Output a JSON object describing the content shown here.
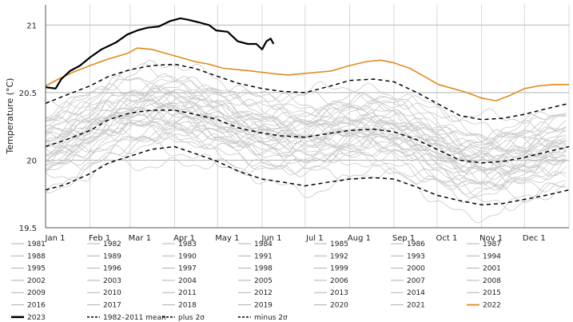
{
  "chart_data": {
    "type": "line",
    "title": "",
    "xlabel": "",
    "ylabel": "Temperature (°C)",
    "ylim": [
      19.5,
      21.15
    ],
    "y_ticks": [
      19.5,
      20,
      20.5,
      21
    ],
    "x_unit": "day of year",
    "xlim": [
      1,
      366
    ],
    "x_ticks": [
      {
        "label": "Jan 1",
        "day": 1
      },
      {
        "label": "Feb 1",
        "day": 32
      },
      {
        "label": "Mar 1",
        "day": 60
      },
      {
        "label": "Apr 1",
        "day": 91
      },
      {
        "label": "May 1",
        "day": 121
      },
      {
        "label": "Jun 1",
        "day": 152
      },
      {
        "label": "Jul 1",
        "day": 182
      },
      {
        "label": "Aug 1",
        "day": 213
      },
      {
        "label": "Sep 1",
        "day": 244
      },
      {
        "label": "Oct 1",
        "day": 274
      },
      {
        "label": "Nov 1",
        "day": 305
      },
      {
        "label": "Dec 1",
        "day": 335
      }
    ],
    "grid": true,
    "legend_position": "bottom",
    "background_years": [
      "1981",
      "1982",
      "1983",
      "1984",
      "1985",
      "1986",
      "1987",
      "1988",
      "1989",
      "1990",
      "1991",
      "1992",
      "1993",
      "1994",
      "1995",
      "1996",
      "1997",
      "1998",
      "1999",
      "2000",
      "2001",
      "2002",
      "2003",
      "2004",
      "2005",
      "2006",
      "2007",
      "2008",
      "2009",
      "2010",
      "2011",
      "2012",
      "2013",
      "2014",
      "2015",
      "2016",
      "2017",
      "2018",
      "2019",
      "2020",
      "2021"
    ],
    "background_color": "#c8c8c8",
    "series": [
      {
        "name": "2023",
        "color": "#000000",
        "style": "solid",
        "width": 2.2,
        "x": [
          1,
          8,
          12,
          18,
          25,
          32,
          40,
          50,
          58,
          65,
          72,
          80,
          88,
          95,
          100,
          108,
          115,
          120,
          128,
          135,
          142,
          148,
          152,
          155,
          158,
          160
        ],
        "y": [
          20.54,
          20.53,
          20.6,
          20.66,
          20.7,
          20.76,
          20.82,
          20.87,
          20.93,
          20.96,
          20.98,
          20.99,
          21.03,
          21.05,
          21.04,
          21.02,
          21.0,
          20.96,
          20.95,
          20.88,
          20.86,
          20.86,
          20.82,
          20.88,
          20.9,
          20.86
        ]
      },
      {
        "name": "2022",
        "color": "#e08a1e",
        "style": "solid",
        "width": 1.6,
        "x": [
          1,
          10,
          20,
          32,
          45,
          58,
          65,
          75,
          85,
          95,
          105,
          115,
          125,
          135,
          145,
          152,
          160,
          170,
          180,
          190,
          200,
          213,
          225,
          235,
          244,
          255,
          265,
          275,
          285,
          295,
          305,
          315,
          325,
          335,
          345,
          355,
          366
        ],
        "y": [
          20.55,
          20.6,
          20.65,
          20.7,
          20.75,
          20.79,
          20.83,
          20.82,
          20.79,
          20.76,
          20.73,
          20.71,
          20.68,
          20.67,
          20.66,
          20.65,
          20.64,
          20.63,
          20.64,
          20.65,
          20.66,
          20.7,
          20.73,
          20.74,
          20.72,
          20.68,
          20.62,
          20.56,
          20.53,
          20.5,
          20.46,
          20.44,
          20.48,
          20.53,
          20.55,
          20.56,
          20.56
        ]
      },
      {
        "name": "1982–2011 mean",
        "color": "#000000",
        "style": "dash",
        "width": 1.5,
        "x": [
          1,
          15,
          32,
          45,
          60,
          75,
          91,
          105,
          121,
          135,
          152,
          165,
          182,
          200,
          213,
          230,
          244,
          260,
          274,
          290,
          305,
          320,
          335,
          350,
          366
        ],
        "y": [
          20.1,
          20.15,
          20.22,
          20.3,
          20.35,
          20.37,
          20.37,
          20.34,
          20.3,
          20.24,
          20.2,
          20.18,
          20.17,
          20.2,
          20.22,
          20.23,
          20.21,
          20.15,
          20.08,
          20.0,
          19.98,
          19.99,
          20.02,
          20.06,
          20.1
        ]
      },
      {
        "name": "plus 2σ",
        "color": "#000000",
        "style": "dash",
        "width": 1.5,
        "x": [
          1,
          15,
          32,
          45,
          60,
          75,
          91,
          105,
          121,
          135,
          152,
          165,
          182,
          200,
          213,
          230,
          244,
          260,
          274,
          290,
          305,
          320,
          335,
          350,
          366
        ],
        "y": [
          20.42,
          20.48,
          20.55,
          20.62,
          20.67,
          20.7,
          20.71,
          20.68,
          20.62,
          20.57,
          20.53,
          20.51,
          20.5,
          20.55,
          20.59,
          20.6,
          20.58,
          20.5,
          20.42,
          20.33,
          20.3,
          20.31,
          20.34,
          20.38,
          20.42
        ]
      },
      {
        "name": "minus 2σ",
        "color": "#000000",
        "style": "dash",
        "width": 1.5,
        "x": [
          1,
          15,
          32,
          45,
          60,
          75,
          91,
          105,
          121,
          135,
          152,
          165,
          182,
          200,
          213,
          230,
          244,
          260,
          274,
          290,
          305,
          320,
          335,
          350,
          366
        ],
        "y": [
          19.78,
          19.82,
          19.9,
          19.98,
          20.03,
          20.08,
          20.1,
          20.05,
          19.99,
          19.92,
          19.86,
          19.84,
          19.81,
          19.84,
          19.86,
          19.87,
          19.86,
          19.8,
          19.74,
          19.7,
          19.67,
          19.68,
          19.71,
          19.74,
          19.78
        ]
      }
    ],
    "legend": [
      {
        "label": "1981",
        "style": "thin"
      },
      {
        "label": "1982",
        "style": "thin"
      },
      {
        "label": "1983",
        "style": "thin"
      },
      {
        "label": "1984",
        "style": "thin"
      },
      {
        "label": "1985",
        "style": "thin"
      },
      {
        "label": "1986",
        "style": "thin"
      },
      {
        "label": "1987",
        "style": "thin"
      },
      {
        "label": "1988",
        "style": "thin"
      },
      {
        "label": "1989",
        "style": "thin"
      },
      {
        "label": "1990",
        "style": "thin"
      },
      {
        "label": "1991",
        "style": "thin"
      },
      {
        "label": "1992",
        "style": "thin"
      },
      {
        "label": "1993",
        "style": "thin"
      },
      {
        "label": "1994",
        "style": "thin"
      },
      {
        "label": "1995",
        "style": "thin"
      },
      {
        "label": "1996",
        "style": "thin"
      },
      {
        "label": "1997",
        "style": "thin"
      },
      {
        "label": "1998",
        "style": "thin"
      },
      {
        "label": "1999",
        "style": "thin"
      },
      {
        "label": "2000",
        "style": "thin"
      },
      {
        "label": "2001",
        "style": "thin"
      },
      {
        "label": "2002",
        "style": "thin"
      },
      {
        "label": "2003",
        "style": "thin"
      },
      {
        "label": "2004",
        "style": "thin"
      },
      {
        "label": "2005",
        "style": "thin"
      },
      {
        "label": "2006",
        "style": "thin"
      },
      {
        "label": "2007",
        "style": "thin"
      },
      {
        "label": "2008",
        "style": "thin"
      },
      {
        "label": "2009",
        "style": "thin"
      },
      {
        "label": "2010",
        "style": "thin"
      },
      {
        "label": "2011",
        "style": "thin"
      },
      {
        "label": "2012",
        "style": "thin"
      },
      {
        "label": "2013",
        "style": "thin"
      },
      {
        "label": "2014",
        "style": "thin"
      },
      {
        "label": "2015",
        "style": "thin"
      },
      {
        "label": "2016",
        "style": "thin"
      },
      {
        "label": "2017",
        "style": "thin"
      },
      {
        "label": "2018",
        "style": "thin"
      },
      {
        "label": "2019",
        "style": "thin"
      },
      {
        "label": "2020",
        "style": "thin"
      },
      {
        "label": "2021",
        "style": "thin"
      },
      {
        "label": "2022",
        "style": "orange"
      },
      {
        "label": "2023",
        "style": "bold"
      },
      {
        "label": "1982–2011 mean",
        "style": "dash"
      },
      {
        "label": "plus 2σ",
        "style": "dash"
      },
      {
        "label": "minus 2σ",
        "style": "dash"
      }
    ]
  }
}
